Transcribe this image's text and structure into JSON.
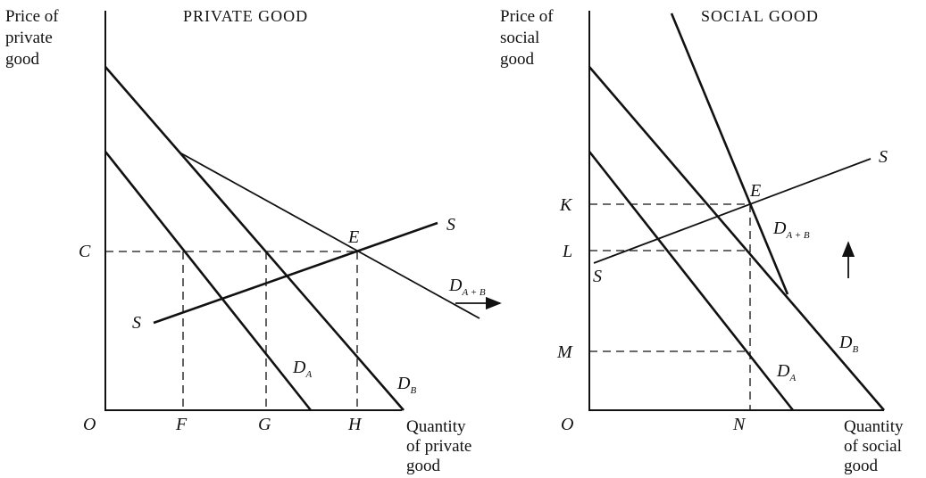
{
  "panels": [
    {
      "title": "PRIVATE GOOD",
      "y_axis_label": [
        "Price of",
        "private",
        "good"
      ],
      "x_axis_label": [
        "Quantity",
        "of private",
        "good"
      ],
      "origin": "O",
      "points": {
        "F": "F",
        "G": "G",
        "H": "H",
        "C": "C",
        "E": "E"
      },
      "supply": [
        "S",
        "S"
      ],
      "demand_a": {
        "main": "D",
        "sub": "A"
      },
      "demand_b": {
        "main": "D",
        "sub": "B"
      },
      "demand_sum": {
        "main": "D",
        "sub": "A + B"
      }
    },
    {
      "title": "SOCIAL GOOD",
      "y_axis_label": [
        "Price of",
        "social",
        "good"
      ],
      "x_axis_label": [
        "Quantity",
        "of social",
        "good"
      ],
      "origin": "O",
      "points": {
        "N": "N",
        "K": "K",
        "L": "L",
        "M": "M",
        "E": "E"
      },
      "supply": [
        "S",
        "S"
      ],
      "demand_a": {
        "main": "D",
        "sub": "A"
      },
      "demand_b": {
        "main": "D",
        "sub": "B"
      },
      "demand_sum": {
        "main": "D",
        "sub": "A + B"
      }
    }
  ]
}
